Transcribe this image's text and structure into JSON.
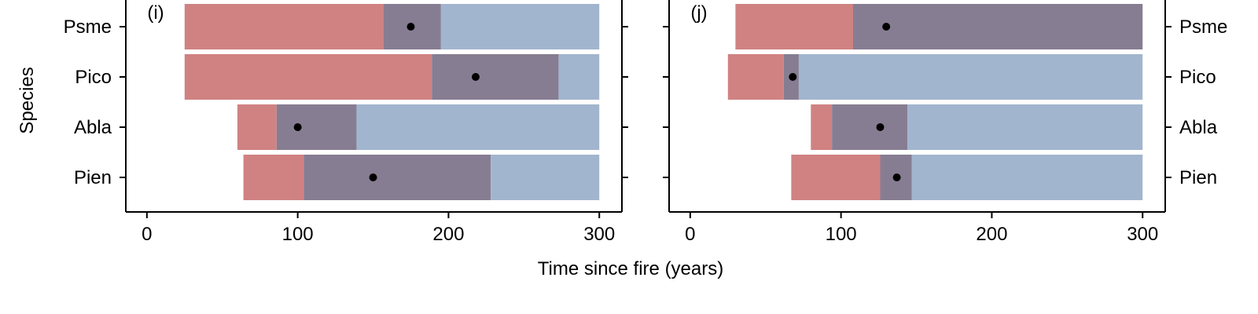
{
  "figure": {
    "xlabel": "Time since fire (years)",
    "ylabel": "Species"
  },
  "colors": {
    "early": "#D08282",
    "overlap": "#877D92",
    "late": "#A2B5CE",
    "point": "#000000",
    "axis": "#000000"
  },
  "chart_data": [
    {
      "type": "bar",
      "panel_label": "(i)",
      "ylabel": "Species",
      "xlabel": "",
      "xlim": [
        -14,
        315
      ],
      "xticks": [
        0,
        100,
        200,
        300
      ],
      "categories": [
        "Psme",
        "Pico",
        "Abla",
        "Pien"
      ],
      "category_labels_side": "left",
      "series": [
        {
          "segments": [
            {
              "values": [
                [
                  25,
                  157
                ],
                [
                  157,
                  195
                ],
                [
                  195,
                  300
                ]
              ]
            },
            {
              "values": [
                [
                  25,
                  189
                ],
                [
                  189,
                  273
                ],
                [
                  273,
                  300
                ]
              ]
            },
            {
              "values": [
                [
                  60,
                  86
                ],
                [
                  86,
                  139
                ],
                [
                  139,
                  300
                ]
              ]
            },
            {
              "values": [
                [
                  64,
                  104
                ],
                [
                  104,
                  228
                ],
                [
                  228,
                  300
                ]
              ]
            }
          ]
        }
      ],
      "points": [
        175,
        218,
        100,
        150
      ]
    },
    {
      "type": "bar",
      "panel_label": "(j)",
      "ylabel": "",
      "xlabel": "",
      "xlim": [
        -14,
        315
      ],
      "xticks": [
        0,
        100,
        200,
        300
      ],
      "categories": [
        "Psme",
        "Pico",
        "Abla",
        "Pien"
      ],
      "category_labels_side": "right",
      "series": [
        {
          "segments": [
            {
              "values": [
                [
                  30,
                  108
                ],
                [
                  108,
                  300
                ],
                [
                  300,
                  300
                ]
              ]
            },
            {
              "values": [
                [
                  25,
                  62
                ],
                [
                  62,
                  72
                ],
                [
                  72,
                  300
                ]
              ]
            },
            {
              "values": [
                [
                  80,
                  94
                ],
                [
                  94,
                  144
                ],
                [
                  144,
                  300
                ]
              ]
            },
            {
              "values": [
                [
                  67,
                  126
                ],
                [
                  126,
                  147
                ],
                [
                  147,
                  300
                ]
              ]
            }
          ]
        }
      ],
      "points": [
        130,
        68,
        126,
        137
      ]
    }
  ]
}
